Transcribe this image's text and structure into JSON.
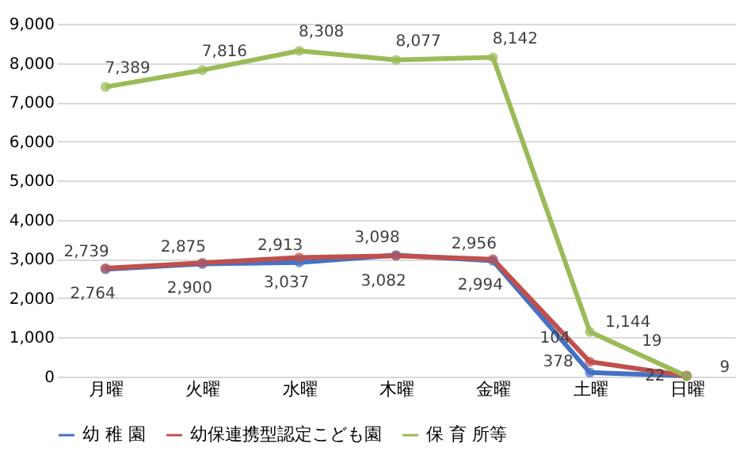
{
  "chart_data": {
    "type": "line",
    "categories": [
      "月曜",
      "火曜",
      "水曜",
      "木曜",
      "金曜",
      "土曜",
      "日曜"
    ],
    "series": [
      {
        "name": "幼 稚 園",
        "color": "#4472c4",
        "values": [
          2739,
          2875,
          2913,
          3098,
          2956,
          104,
          19
        ],
        "value_labels": [
          "2,739",
          "2,875",
          "2,913",
          "3,098",
          "2,956",
          "104",
          "19"
        ]
      },
      {
        "name": "幼保連携型認定こども園",
        "color": "#c0504d",
        "values": [
          2764,
          2900,
          3037,
          3082,
          2994,
          378,
          22
        ],
        "value_labels": [
          "2,764",
          "2,900",
          "3,037",
          "3,082",
          "2,994",
          "378",
          "22"
        ]
      },
      {
        "name": "保 育 所等",
        "color": "#9bbb59",
        "values": [
          7389,
          7816,
          8308,
          8077,
          8142,
          1144,
          9
        ],
        "value_labels": [
          "7,389",
          "7,816",
          "8,308",
          "8,077",
          "8,142",
          "1,144",
          "9"
        ]
      }
    ],
    "ylim": [
      0,
      9000
    ],
    "yticks": [
      0,
      {
        "value": 1000,
        "label": "1,000"
      },
      {
        "value": 2000,
        "label": "2,000"
      },
      {
        "value": 3000,
        "label": "3,000"
      },
      {
        "value": 4000,
        "label": "4,000"
      },
      {
        "value": 5000,
        "label": "5,000"
      },
      {
        "value": 6000,
        "label": "6,000"
      },
      {
        "value": 7000,
        "label": "7,000"
      },
      {
        "value": 8000,
        "label": "8,000"
      },
      {
        "value": 9000,
        "label": "9,000"
      }
    ],
    "grid": "y",
    "legend": "bottom",
    "marker": "circle"
  }
}
